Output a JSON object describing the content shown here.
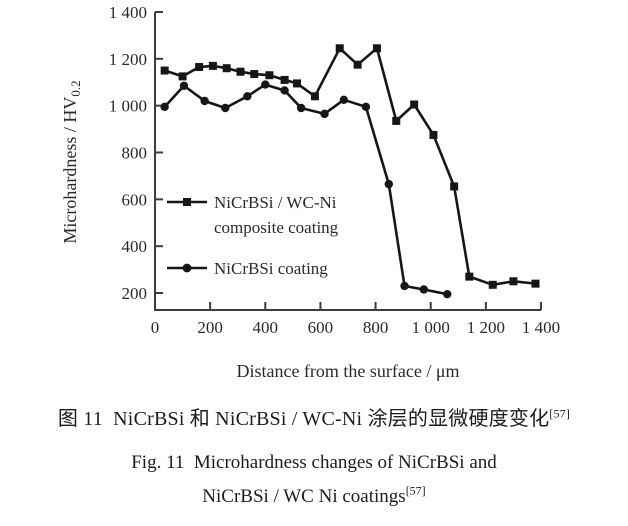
{
  "figure": {
    "y_axis": {
      "label_main": "Microhardness / HV",
      "label_sub": "0.2",
      "tick_labels": [
        "200",
        "400",
        "600",
        "800",
        "1 000",
        "1 200",
        "1 400"
      ]
    },
    "x_axis": {
      "label": "Distance from the surface / μm",
      "tick_labels": [
        "0",
        "200",
        "400",
        "600",
        "800",
        "1 000",
        "1 200",
        "1 400"
      ]
    }
  },
  "legend": {
    "entries": [
      {
        "marker": "square",
        "label_line1": "NiCrBSi / WC-Ni",
        "label_line2": "composite coating"
      },
      {
        "marker": "circle",
        "label_line1": "NiCrBSi coating",
        "label_line2": ""
      }
    ]
  },
  "chart_data": {
    "type": "line",
    "title": "",
    "xlabel": "Distance from the surface / μm",
    "ylabel": "Microhardness / HV0.2",
    "xlim": [
      0,
      1400
    ],
    "ylim": [
      200,
      1400
    ],
    "x_ticks": [
      0,
      200,
      400,
      600,
      800,
      1000,
      1200,
      1400
    ],
    "y_ticks": [
      200,
      400,
      600,
      800,
      1000,
      1200,
      1400
    ],
    "grid": false,
    "legend_position": "inside-middle-left",
    "line_color": "#161616",
    "axis_color": "#3d3d3d",
    "series": [
      {
        "name": "NiCrBSi / WC-Ni composite coating",
        "marker": "square",
        "color": "#161616",
        "points": [
          [
            35,
            1150
          ],
          [
            100,
            1125
          ],
          [
            160,
            1165
          ],
          [
            210,
            1170
          ],
          [
            260,
            1160
          ],
          [
            310,
            1145
          ],
          [
            360,
            1135
          ],
          [
            415,
            1130
          ],
          [
            470,
            1110
          ],
          [
            515,
            1095
          ],
          [
            580,
            1040
          ],
          [
            670,
            1245
          ],
          [
            735,
            1175
          ],
          [
            805,
            1245
          ],
          [
            875,
            935
          ],
          [
            940,
            1005
          ],
          [
            1010,
            875
          ],
          [
            1085,
            655
          ],
          [
            1140,
            270
          ],
          [
            1225,
            235
          ],
          [
            1300,
            250
          ],
          [
            1380,
            240
          ]
        ]
      },
      {
        "name": "NiCrBSi coating",
        "marker": "circle",
        "color": "#161616",
        "points": [
          [
            35,
            995
          ],
          [
            105,
            1085
          ],
          [
            180,
            1020
          ],
          [
            255,
            990
          ],
          [
            335,
            1040
          ],
          [
            400,
            1090
          ],
          [
            470,
            1065
          ],
          [
            530,
            990
          ],
          [
            615,
            965
          ],
          [
            685,
            1025
          ],
          [
            765,
            995
          ],
          [
            848,
            665
          ],
          [
            905,
            230
          ],
          [
            975,
            215
          ],
          [
            1060,
            195
          ]
        ]
      }
    ]
  },
  "captions": {
    "line1_zh": "图 11 NiCrBSi 和 NiCrBSi / WC-Ni 涂层的显微硬度变化",
    "line1_sup": "[57]",
    "line2_en": "Fig. 11 Microhardness changes of NiCrBSi and",
    "line3_en": "NiCrBSi / WC Ni coatings",
    "line3_sup": "[57]"
  }
}
